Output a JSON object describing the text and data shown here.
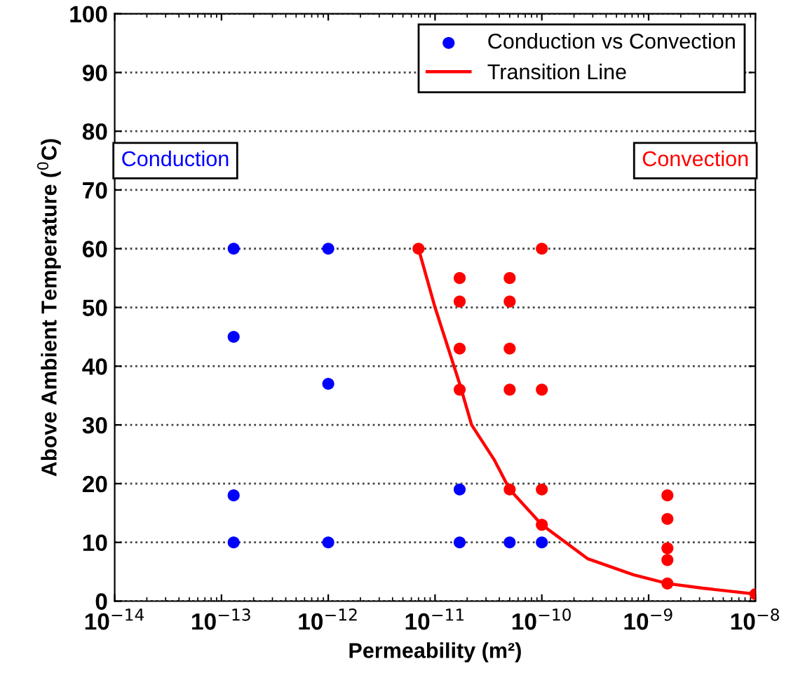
{
  "chart_data": {
    "type": "scatter",
    "xlabel": "Permeability (m²)",
    "ylabel": "Above Ambient Temperature ($^{0}$C)",
    "log": "x",
    "xlim": [
      1e-14,
      1e-08
    ],
    "ylim": [
      0,
      100
    ],
    "xticks": [
      {
        "value": 1e-14,
        "label": "10$^{−14}$"
      },
      {
        "value": 1e-13,
        "label": "10$^{−13}$"
      },
      {
        "value": 1e-12,
        "label": "10$^{−12}$"
      },
      {
        "value": 1e-11,
        "label": "10$^{−11}$"
      },
      {
        "value": 1e-10,
        "label": "10$^{−10}$"
      },
      {
        "value": 1e-09,
        "label": "10$^{−9}$"
      },
      {
        "value": 1e-08,
        "label": "10$^{−8}$"
      }
    ],
    "yticks": [
      0,
      10,
      20,
      30,
      40,
      50,
      60,
      70,
      80,
      90,
      100
    ],
    "grid": "y",
    "legend": "top right",
    "marker": "circle",
    "series": [
      {
        "name": "Conduction vs Convection",
        "color": "#0000ff",
        "x": [
          1.3e-13,
          1.3e-13,
          1.3e-13,
          1.3e-13,
          1e-12,
          1e-12,
          1e-12,
          1.7e-11,
          1.7e-11,
          5e-11,
          1e-10
        ],
        "values": [
          60,
          45,
          18,
          10,
          60,
          37,
          10,
          19,
          10,
          10,
          10
        ]
      },
      {
        "color": "#ff0000",
        "x": [
          7e-12,
          1.7e-11,
          1.7e-11,
          1.7e-11,
          1.7e-11,
          5e-11,
          5e-11,
          5e-11,
          5e-11,
          5e-11,
          1e-10,
          1e-10,
          1e-10,
          1e-10,
          1.5e-09,
          1.5e-09,
          1.5e-09,
          1.5e-09,
          1.5e-09,
          1e-08
        ],
        "values": [
          60,
          55,
          51,
          43,
          36,
          55,
          51,
          43,
          36,
          19,
          60,
          36,
          19,
          13,
          18,
          14,
          9,
          7,
          3,
          1.2
        ]
      },
      {
        "name": "Transition Line",
        "type": "line",
        "color": "#ff0000",
        "line_style": "solid",
        "marker": "none",
        "x": [
          7e-12,
          1e-11,
          1.7e-11,
          2.2e-11,
          3.6e-11,
          5e-11,
          1e-10,
          2.7e-10,
          7.2e-10,
          1.5e-09,
          3.2e-09,
          1e-08
        ],
        "values": [
          60,
          50,
          37,
          30,
          24,
          19,
          13,
          7.2,
          4.5,
          3,
          2.2,
          1.2
        ]
      }
    ],
    "annotations": [
      "Conduction",
      "Convection"
    ]
  }
}
